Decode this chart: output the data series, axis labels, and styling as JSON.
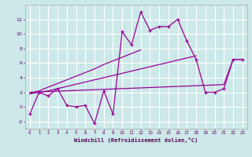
{
  "xlabel": "Windchill (Refroidissement éolien,°C)",
  "background_color": "#cce8e8",
  "grid_color": "#ffffff",
  "line_color": "#990099",
  "x_values": [
    0,
    1,
    2,
    3,
    4,
    5,
    6,
    7,
    8,
    9,
    10,
    11,
    12,
    13,
    14,
    15,
    16,
    17,
    18,
    19,
    20,
    21,
    22,
    23
  ],
  "series1": [
    -1.0,
    2.0,
    1.5,
    2.5,
    0.2,
    0.0,
    0.2,
    -2.3,
    2.2,
    -1.0,
    10.3,
    8.5,
    13.0,
    10.5,
    11.0,
    11.0,
    12.0,
    9.0,
    6.5,
    2.0,
    2.0,
    2.5,
    6.5,
    6.5
  ],
  "linear_steep": [
    1.8,
    2.2,
    2.7,
    3.2,
    3.7,
    4.2,
    4.7,
    5.2,
    5.8,
    6.3,
    6.8,
    7.3,
    7.8,
    null,
    null,
    null,
    null,
    null,
    null,
    null,
    null,
    null,
    null,
    null
  ],
  "linear_mid": [
    1.8,
    2.0,
    2.2,
    2.5,
    2.8,
    3.1,
    3.4,
    3.7,
    4.0,
    4.3,
    4.6,
    4.9,
    5.2,
    5.5,
    5.8,
    6.1,
    6.4,
    6.7,
    7.0,
    null,
    null,
    null,
    null,
    null
  ],
  "linear_flat": [
    2.0,
    2.05,
    2.1,
    2.15,
    2.2,
    2.25,
    2.3,
    2.35,
    2.4,
    2.45,
    2.5,
    2.55,
    2.6,
    2.65,
    2.7,
    2.75,
    2.8,
    2.85,
    2.9,
    2.95,
    3.0,
    3.05,
    6.5,
    6.5
  ],
  "ylim": [
    -3,
    14
  ],
  "xlim": [
    -0.5,
    23.5
  ],
  "yticks": [
    -2,
    0,
    2,
    4,
    6,
    8,
    10,
    12
  ],
  "xticks": [
    0,
    1,
    2,
    3,
    4,
    5,
    6,
    7,
    8,
    9,
    10,
    11,
    12,
    13,
    14,
    15,
    16,
    17,
    18,
    19,
    20,
    21,
    22,
    23
  ]
}
